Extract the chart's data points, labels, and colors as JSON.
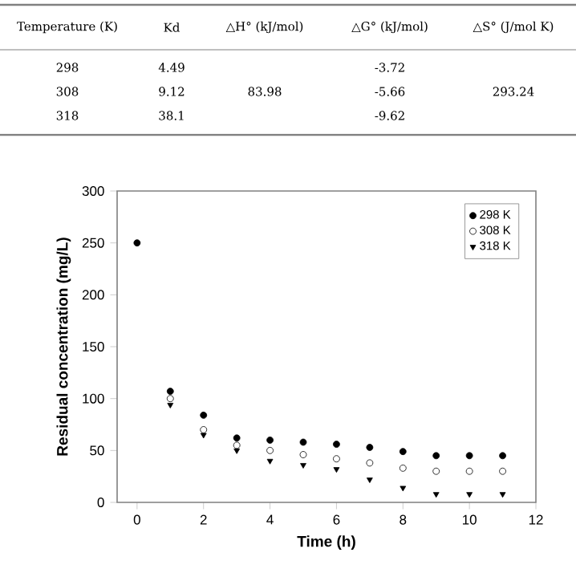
{
  "chart_data": {
    "type": "scatter",
    "xlabel": "Time (h)",
    "ylabel": "Residual concentration (mg/L)",
    "x": [
      0,
      1,
      2,
      3,
      4,
      5,
      6,
      7,
      8,
      9,
      10,
      11
    ],
    "series": [
      {
        "name": "298 K",
        "color": "#000000",
        "marker": "circle",
        "values": [
          250,
          107,
          84,
          62,
          60,
          58,
          56,
          53,
          49,
          45,
          45,
          45
        ]
      },
      {
        "name": "308 K",
        "color": "#000000",
        "marker": "open circle",
        "values": [
          null,
          100,
          70,
          55,
          50,
          46,
          42,
          38,
          33,
          30,
          30,
          30
        ]
      },
      {
        "name": "318 K",
        "color": "#000000",
        "marker": "triangle down",
        "values": [
          null,
          94,
          65,
          50,
          40,
          36,
          32,
          22,
          14,
          8,
          8,
          8
        ]
      }
    ],
    "xlim": [
      -0.6,
      12
    ],
    "ylim": [
      0,
      300
    ],
    "xticks": [
      0,
      2,
      4,
      6,
      8,
      10,
      12
    ],
    "yticks": [
      0,
      50,
      100,
      150,
      200,
      250,
      300
    ],
    "grid": false,
    "legend": "top right",
    "annotations": [
      "Temperature  (K)",
      "Kd",
      "△H° (kJ/mol)",
      "△G° (kJ/mol)",
      "△S° (J/mol  K)",
      "298",
      "4.49",
      "-3.72",
      "308",
      "9.12",
      "83.98",
      "-5.66",
      "293.24",
      "318",
      "38.1",
      "-9.62"
    ]
  }
}
